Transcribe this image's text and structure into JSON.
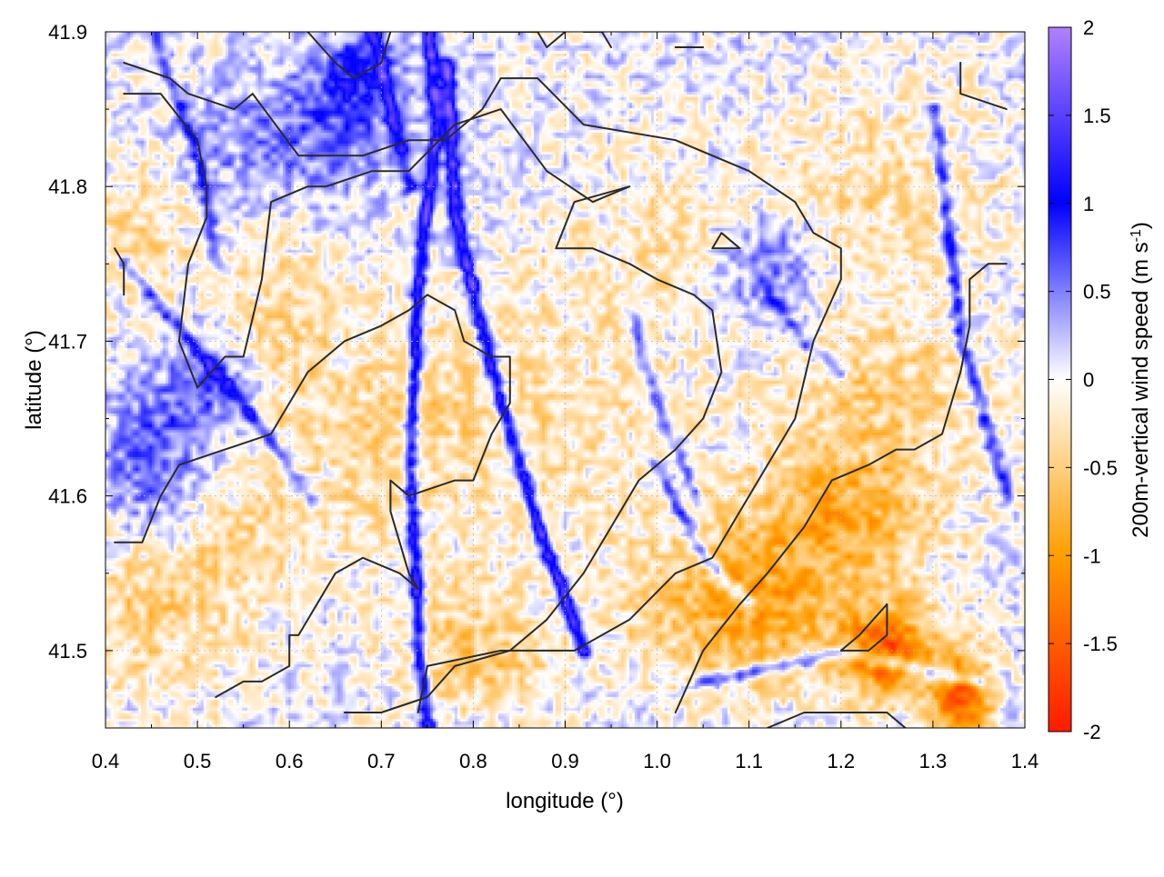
{
  "chart_data": {
    "type": "heatmap",
    "title": "",
    "xlabel": "longitude (°)",
    "ylabel": "latitude (°)",
    "colorbar": {
      "label": "200m-vertical wind speed (m s",
      "label_exponent": "-1",
      "label_suffix": ")",
      "range": [
        -2,
        2
      ],
      "ticks": [
        "-2",
        "-1.5",
        "-1",
        "-0.5",
        "0",
        "0.5",
        "1",
        "1.5",
        "2"
      ],
      "stops": [
        {
          "value": -2,
          "color": "#ff1a00"
        },
        {
          "value": -1,
          "color": "#ff9e00"
        },
        {
          "value": 0,
          "color": "#ffffff"
        },
        {
          "value": 1,
          "color": "#0000ff"
        },
        {
          "value": 2,
          "color": "#b080ff"
        }
      ]
    },
    "xlim": [
      0.4,
      1.4
    ],
    "ylim": [
      41.45,
      41.9
    ],
    "x_ticks": [
      "0.4",
      "0.5",
      "0.6",
      "0.7",
      "0.8",
      "0.9",
      "1.0",
      "1.1",
      "1.2",
      "1.3",
      "1.4"
    ],
    "y_ticks": [
      "41.5",
      "41.6",
      "41.7",
      "41.8",
      "41.9"
    ],
    "grid": true,
    "features": {
      "ridges": [
        {
          "value": 1.3,
          "points": [
            [
              0.75,
              41.9
            ],
            [
              0.76,
              41.84
            ],
            [
              0.74,
              41.75
            ],
            [
              0.73,
              41.62
            ],
            [
              0.74,
              41.5
            ],
            [
              0.75,
              41.45
            ]
          ]
        },
        {
          "value": 1.4,
          "points": [
            [
              0.77,
              41.88
            ],
            [
              0.78,
              41.78
            ],
            [
              0.82,
              41.68
            ],
            [
              0.87,
              41.58
            ],
            [
              0.92,
              41.5
            ]
          ]
        },
        {
          "value": 0.9,
          "points": [
            [
              0.69,
              41.9
            ],
            [
              0.71,
              41.85
            ],
            [
              0.73,
              41.8
            ]
          ]
        },
        {
          "value": 0.8,
          "points": [
            [
              0.42,
              41.75
            ],
            [
              0.55,
              41.66
            ],
            [
              0.62,
              41.6
            ]
          ]
        },
        {
          "value": 0.7,
          "points": [
            [
              1.12,
              41.73
            ],
            [
              1.16,
              41.7
            ],
            [
              1.2,
              41.68
            ]
          ]
        },
        {
          "value": 0.9,
          "points": [
            [
              1.3,
              41.85
            ],
            [
              1.33,
              41.7
            ],
            [
              1.38,
              41.6
            ]
          ]
        },
        {
          "value": 0.8,
          "points": [
            [
              1.0,
              41.62
            ],
            [
              1.05,
              41.56
            ],
            [
              1.1,
              41.53
            ]
          ]
        },
        {
          "value": 0.9,
          "points": [
            [
              1.05,
              41.48
            ],
            [
              1.2,
              41.5
            ],
            [
              1.35,
              41.48
            ]
          ]
        },
        {
          "value": 0.7,
          "points": [
            [
              0.45,
              41.9
            ],
            [
              0.5,
              41.82
            ],
            [
              0.52,
              41.75
            ]
          ]
        },
        {
          "value": 0.6,
          "points": [
            [
              0.97,
              41.72
            ],
            [
              1.0,
              41.66
            ],
            [
              1.04,
              41.6
            ]
          ]
        }
      ],
      "blobs": [
        {
          "center": [
            0.7,
            41.64
          ],
          "radius": [
            0.12,
            0.08
          ],
          "value": -0.4
        },
        {
          "center": [
            0.9,
            41.66
          ],
          "radius": [
            0.15,
            0.1
          ],
          "value": -0.3
        },
        {
          "center": [
            0.45,
            41.53
          ],
          "radius": [
            0.1,
            0.06
          ],
          "value": -0.5
        },
        {
          "center": [
            0.43,
            41.77
          ],
          "radius": [
            0.06,
            0.05
          ],
          "value": -0.4
        },
        {
          "center": [
            0.59,
            41.72
          ],
          "radius": [
            0.06,
            0.06
          ],
          "value": -0.35
        },
        {
          "center": [
            1.1,
            41.53
          ],
          "radius": [
            0.12,
            0.05
          ],
          "value": -0.95
        },
        {
          "center": [
            1.2,
            41.59
          ],
          "radius": [
            0.1,
            0.04
          ],
          "value": -0.7
        },
        {
          "center": [
            1.25,
            41.5
          ],
          "radius": [
            0.05,
            0.03
          ],
          "value": -1.4
        },
        {
          "center": [
            1.33,
            41.47
          ],
          "radius": [
            0.03,
            0.03
          ],
          "value": -1.6
        },
        {
          "center": [
            1.25,
            41.66
          ],
          "radius": [
            0.12,
            0.06
          ],
          "value": -0.5
        },
        {
          "center": [
            1.25,
            41.8
          ],
          "radius": [
            0.12,
            0.06
          ],
          "value": -0.4
        },
        {
          "center": [
            0.8,
            41.5
          ],
          "radius": [
            0.08,
            0.04
          ],
          "value": -0.6
        },
        {
          "center": [
            0.55,
            41.58
          ],
          "radius": [
            0.06,
            0.05
          ],
          "value": -0.3
        },
        {
          "center": [
            0.45,
            41.62
          ],
          "radius": [
            0.06,
            0.05
          ],
          "value": 0.6
        },
        {
          "center": [
            0.51,
            41.67
          ],
          "radius": [
            0.05,
            0.03
          ],
          "value": 0.6
        },
        {
          "center": [
            0.67,
            41.87
          ],
          "radius": [
            0.05,
            0.03
          ],
          "value": 0.8
        },
        {
          "center": [
            1.12,
            41.75
          ],
          "radius": [
            0.05,
            0.03
          ],
          "value": 0.6
        },
        {
          "center": [
            0.6,
            41.83
          ],
          "radius": [
            0.1,
            0.04
          ],
          "value": 0.5
        },
        {
          "center": [
            1.0,
            41.77
          ],
          "radius": [
            0.08,
            0.05
          ],
          "value": -0.25
        }
      ]
    },
    "contours": [
      [
        [
          0.42,
          41.88
        ],
        [
          0.47,
          41.87
        ],
        [
          0.49,
          41.86
        ],
        [
          0.54,
          41.85
        ],
        [
          0.56,
          41.86
        ],
        [
          0.61,
          41.82
        ],
        [
          0.68,
          41.82
        ],
        [
          0.73,
          41.83
        ],
        [
          0.77,
          41.83
        ],
        [
          0.81,
          41.85
        ],
        [
          0.83,
          41.87
        ],
        [
          0.87,
          41.87
        ],
        [
          0.92,
          41.84
        ],
        [
          1.02,
          41.83
        ],
        [
          1.1,
          41.81
        ],
        [
          1.15,
          41.79
        ],
        [
          1.17,
          41.77
        ],
        [
          1.2,
          41.76
        ],
        [
          1.2,
          41.74
        ],
        [
          1.17,
          41.7
        ],
        [
          1.15,
          41.65
        ],
        [
          1.1,
          41.6
        ],
        [
          1.06,
          41.56
        ],
        [
          1.02,
          41.55
        ],
        [
          0.97,
          41.52
        ],
        [
          0.91,
          41.5
        ],
        [
          0.83,
          41.5
        ],
        [
          0.75,
          41.49
        ],
        [
          0.74,
          41.46
        ]
      ],
      [
        [
          0.42,
          41.86
        ],
        [
          0.46,
          41.86
        ],
        [
          0.5,
          41.83
        ],
        [
          0.51,
          41.8
        ],
        [
          0.51,
          41.78
        ],
        [
          0.49,
          41.75
        ],
        [
          0.48,
          41.7
        ],
        [
          0.5,
          41.67
        ],
        [
          0.53,
          41.69
        ],
        [
          0.55,
          41.69
        ],
        [
          0.57,
          41.74
        ],
        [
          0.58,
          41.79
        ],
        [
          0.62,
          41.8
        ],
        [
          0.64,
          41.8
        ],
        [
          0.69,
          41.81
        ],
        [
          0.73,
          41.81
        ],
        [
          0.78,
          41.84
        ],
        [
          0.83,
          41.85
        ],
        [
          0.88,
          41.81
        ],
        [
          0.93,
          41.79
        ],
        [
          0.97,
          41.8
        ],
        [
          0.91,
          41.79
        ],
        [
          0.89,
          41.76
        ],
        [
          0.93,
          41.76
        ],
        [
          0.97,
          41.75
        ],
        [
          1.0,
          41.74
        ],
        [
          1.04,
          41.73
        ],
        [
          1.06,
          41.72
        ],
        [
          1.07,
          41.68
        ],
        [
          1.05,
          41.65
        ],
        [
          1.02,
          41.63
        ],
        [
          0.98,
          41.61
        ],
        [
          0.95,
          41.58
        ],
        [
          0.92,
          41.55
        ],
        [
          0.88,
          41.52
        ],
        [
          0.84,
          41.5
        ],
        [
          0.78,
          41.49
        ],
        [
          0.75,
          41.47
        ],
        [
          0.7,
          41.46
        ],
        [
          0.66,
          41.46
        ]
      ],
      [
        [
          0.41,
          41.57
        ],
        [
          0.44,
          41.57
        ],
        [
          0.46,
          41.6
        ],
        [
          0.48,
          41.62
        ],
        [
          0.53,
          41.63
        ],
        [
          0.58,
          41.64
        ],
        [
          0.62,
          41.68
        ],
        [
          0.66,
          41.7
        ],
        [
          0.7,
          41.71
        ],
        [
          0.73,
          41.72
        ],
        [
          0.75,
          41.73
        ],
        [
          0.78,
          41.72
        ],
        [
          0.79,
          41.7
        ],
        [
          0.82,
          41.69
        ],
        [
          0.84,
          41.69
        ],
        [
          0.84,
          41.66
        ],
        [
          0.82,
          41.64
        ],
        [
          0.8,
          41.61
        ],
        [
          0.78,
          41.61
        ],
        [
          0.73,
          41.6
        ],
        [
          0.71,
          41.61
        ],
        [
          0.71,
          41.59
        ],
        [
          0.72,
          41.57
        ],
        [
          0.73,
          41.55
        ],
        [
          0.74,
          41.54
        ],
        [
          0.72,
          41.55
        ],
        [
          0.68,
          41.56
        ],
        [
          0.65,
          41.55
        ],
        [
          0.63,
          41.53
        ],
        [
          0.61,
          41.51
        ],
        [
          0.6,
          41.51
        ],
        [
          0.6,
          41.49
        ],
        [
          0.57,
          41.48
        ],
        [
          0.55,
          41.48
        ],
        [
          0.52,
          41.47
        ]
      ],
      [
        [
          1.02,
          41.46
        ],
        [
          1.05,
          41.5
        ],
        [
          1.09,
          41.53
        ],
        [
          1.12,
          41.55
        ],
        [
          1.16,
          41.58
        ],
        [
          1.19,
          41.61
        ],
        [
          1.23,
          41.62
        ],
        [
          1.26,
          41.63
        ],
        [
          1.28,
          41.63
        ],
        [
          1.31,
          41.64
        ],
        [
          1.32,
          41.66
        ],
        [
          1.33,
          41.68
        ],
        [
          1.34,
          41.71
        ],
        [
          1.34,
          41.74
        ],
        [
          1.36,
          41.75
        ],
        [
          1.38,
          41.75
        ]
      ],
      [
        [
          1.12,
          41.45
        ],
        [
          1.16,
          41.46
        ],
        [
          1.2,
          41.46
        ],
        [
          1.25,
          41.46
        ],
        [
          1.27,
          41.45
        ]
      ],
      [
        [
          1.2,
          41.5
        ],
        [
          1.22,
          41.51
        ],
        [
          1.25,
          41.53
        ],
        [
          1.25,
          41.51
        ],
        [
          1.23,
          41.5
        ],
        [
          1.2,
          41.5
        ]
      ],
      [
        [
          1.06,
          41.76
        ],
        [
          1.07,
          41.77
        ],
        [
          1.09,
          41.76
        ],
        [
          1.07,
          41.76
        ],
        [
          1.06,
          41.76
        ]
      ],
      [
        [
          0.62,
          41.9
        ],
        [
          0.65,
          41.88
        ],
        [
          0.67,
          41.87
        ],
        [
          0.7,
          41.88
        ],
        [
          0.71,
          41.9
        ]
      ],
      [
        [
          0.79,
          41.9
        ],
        [
          0.81,
          41.9
        ],
        [
          0.84,
          41.9
        ],
        [
          0.87,
          41.9
        ],
        [
          0.88,
          41.89
        ],
        [
          0.9,
          41.9
        ]
      ],
      [
        [
          0.92,
          41.9
        ],
        [
          0.94,
          41.9
        ],
        [
          0.95,
          41.89
        ]
      ],
      [
        [
          1.02,
          41.89
        ],
        [
          1.05,
          41.89
        ]
      ],
      [
        [
          1.33,
          41.88
        ],
        [
          1.33,
          41.86
        ],
        [
          1.38,
          41.85
        ]
      ],
      [
        [
          0.41,
          41.76
        ],
        [
          0.42,
          41.75
        ],
        [
          0.42,
          41.73
        ]
      ]
    ]
  }
}
